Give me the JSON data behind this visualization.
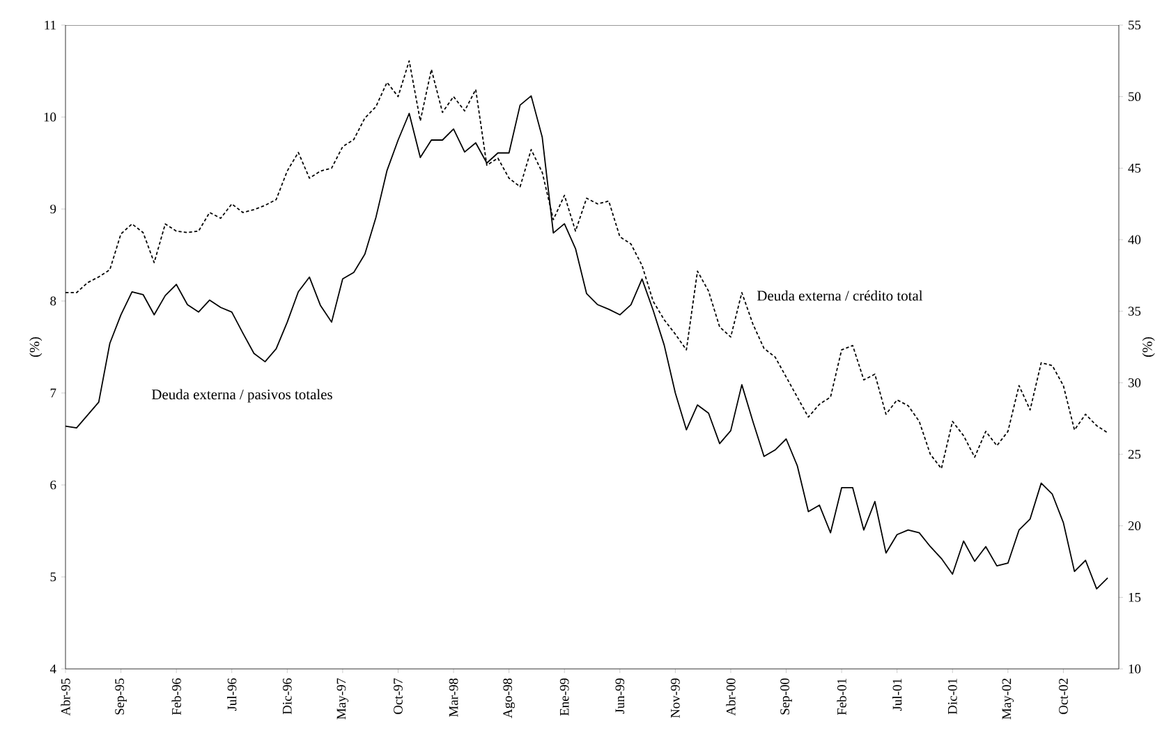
{
  "chart_data": {
    "type": "line",
    "ylabel": "(%)",
    "y2label": "(%)",
    "xlim": [
      "1995-04",
      "2003-03"
    ],
    "xticks": [
      {
        "value": "1995-04",
        "label": "Abr-95"
      },
      {
        "value": "1995-09",
        "label": "Sep-95"
      },
      {
        "value": "1996-02",
        "label": "Feb-96"
      },
      {
        "value": "1996-07",
        "label": "Jul-96"
      },
      {
        "value": "1996-12",
        "label": "Dic-96"
      },
      {
        "value": "1997-05",
        "label": "May-97"
      },
      {
        "value": "1997-10",
        "label": "Oct-97"
      },
      {
        "value": "1998-03",
        "label": "Mar-98"
      },
      {
        "value": "1998-08",
        "label": "Ago-98"
      },
      {
        "value": "1999-01",
        "label": "Ene-99"
      },
      {
        "value": "1999-06",
        "label": "Jun-99"
      },
      {
        "value": "1999-11",
        "label": "Nov-99"
      },
      {
        "value": "2000-04",
        "label": "Abr-00"
      },
      {
        "value": "2000-09",
        "label": "Sep-00"
      },
      {
        "value": "2001-02",
        "label": "Feb-01"
      },
      {
        "value": "2001-07",
        "label": "Jul-01"
      },
      {
        "value": "2001-12",
        "label": "Dic-01"
      },
      {
        "value": "2002-05",
        "label": "May-02"
      },
      {
        "value": "2002-10",
        "label": "Oct-02"
      }
    ],
    "ylim": [
      4,
      11
    ],
    "yticks": [
      4,
      5,
      6,
      7,
      8,
      9,
      10,
      11
    ],
    "y2lim": [
      10,
      55
    ],
    "y2ticks": [
      10,
      15,
      20,
      25,
      30,
      35,
      40,
      45,
      50,
      55
    ],
    "x": [
      "1995-04",
      "1995-05",
      "1995-06",
      "1995-07",
      "1995-08",
      "1995-09",
      "1995-10",
      "1995-11",
      "1995-12",
      "1996-01",
      "1996-02",
      "1996-03",
      "1996-04",
      "1996-05",
      "1996-06",
      "1996-07",
      "1996-08",
      "1996-09",
      "1996-10",
      "1996-11",
      "1996-12",
      "1997-01",
      "1997-02",
      "1997-03",
      "1997-04",
      "1997-05",
      "1997-06",
      "1997-07",
      "1997-08",
      "1997-09",
      "1997-10",
      "1997-11",
      "1997-12",
      "1998-01",
      "1998-02",
      "1998-03",
      "1998-04",
      "1998-05",
      "1998-06",
      "1998-07",
      "1998-08",
      "1998-09",
      "1998-10",
      "1998-11",
      "1998-12",
      "1999-01",
      "1999-02",
      "1999-03",
      "1999-04",
      "1999-05",
      "1999-06",
      "1999-07",
      "1999-08",
      "1999-09",
      "1999-10",
      "1999-11",
      "1999-12",
      "2000-01",
      "2000-02",
      "2000-03",
      "2000-04",
      "2000-05",
      "2000-06",
      "2000-07",
      "2000-08",
      "2000-09",
      "2000-10",
      "2000-11",
      "2000-12",
      "2001-01",
      "2001-02",
      "2001-03",
      "2001-04",
      "2001-05",
      "2001-06",
      "2001-07",
      "2001-08",
      "2001-09",
      "2001-10",
      "2001-11",
      "2001-12",
      "2002-01",
      "2002-02",
      "2002-03",
      "2002-04",
      "2002-05",
      "2002-06",
      "2002-07",
      "2002-08",
      "2002-09",
      "2002-10",
      "2002-11",
      "2002-12",
      "2003-01",
      "2003-02"
    ],
    "series": [
      {
        "name": "Deuda externa / pasivos totales",
        "color": "#000000",
        "line_style": "solid",
        "values": [
          6.64,
          6.62,
          6.76,
          6.9,
          7.54,
          7.85,
          8.1,
          8.07,
          7.85,
          8.06,
          8.18,
          7.96,
          7.88,
          8.01,
          7.93,
          7.88,
          7.65,
          7.43,
          7.34,
          7.48,
          7.77,
          8.1,
          8.26,
          7.95,
          7.77,
          8.24,
          8.31,
          8.51,
          8.91,
          9.42,
          9.75,
          10.04,
          9.56,
          9.75,
          9.75,
          9.87,
          9.62,
          9.72,
          9.5,
          9.61,
          9.61,
          10.13,
          10.23,
          9.78,
          8.74,
          8.84,
          8.57,
          8.08,
          7.96,
          7.91,
          7.85,
          7.96,
          8.24,
          7.9,
          7.52,
          7.0,
          6.6,
          6.87,
          6.78,
          6.45,
          6.59,
          7.09,
          6.69,
          6.31,
          6.38,
          6.5,
          6.21,
          5.71,
          5.78,
          5.48,
          5.97,
          5.97,
          5.51,
          5.82,
          5.26,
          5.46,
          5.51,
          5.48,
          5.33,
          5.2,
          5.03,
          5.39,
          5.17,
          5.33,
          5.12,
          5.15,
          5.51,
          5.63,
          6.02,
          5.9,
          5.59,
          5.06,
          5.18,
          4.87,
          4.99
        ]
      },
      {
        "name": "Deuda externa / crédito total",
        "color": "#000000",
        "line_style": "dashed",
        "axis": "y2",
        "values": [
          36.3,
          36.3,
          37.0,
          37.4,
          37.9,
          40.4,
          41.1,
          40.5,
          38.4,
          41.1,
          40.6,
          40.5,
          40.6,
          41.9,
          41.5,
          42.5,
          41.9,
          42.1,
          42.4,
          42.8,
          44.8,
          46.1,
          44.3,
          44.8,
          45.0,
          46.5,
          47.0,
          48.5,
          49.3,
          51.0,
          50.0,
          52.5,
          48.3,
          51.9,
          48.9,
          50.0,
          49.0,
          50.5,
          45.2,
          45.7,
          44.3,
          43.7,
          46.3,
          44.7,
          41.4,
          43.1,
          40.6,
          42.9,
          42.5,
          42.7,
          40.2,
          39.7,
          38.2,
          35.7,
          34.4,
          33.4,
          32.3,
          37.8,
          36.4,
          33.9,
          33.2,
          36.3,
          34.1,
          32.4,
          31.8,
          30.4,
          29.0,
          27.6,
          28.5,
          29.0,
          32.3,
          32.6,
          30.2,
          30.6,
          27.8,
          28.8,
          28.4,
          27.3,
          25.0,
          24.0,
          27.3,
          26.3,
          24.8,
          26.6,
          25.6,
          26.6,
          29.8,
          28.1,
          31.4,
          31.2,
          29.8,
          26.7,
          27.8,
          27.0,
          26.5
        ]
      }
    ]
  }
}
